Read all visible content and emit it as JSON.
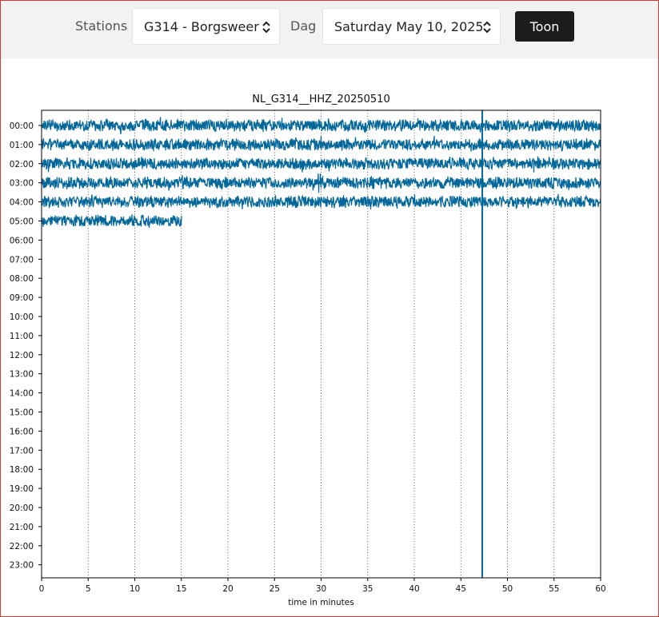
{
  "form": {
    "stations_label": "Stations",
    "station_value": "G314 - Borgsweer",
    "day_label": "Dag",
    "day_value": "Saturday May 10, 2025",
    "submit_label": "Toon"
  },
  "chart_data": {
    "type": "line",
    "title": "NL_G314__HHZ_20250510",
    "xlabel": "time in minutes",
    "ylabel": "",
    "xlim": [
      0,
      60
    ],
    "x_ticks": [
      0,
      5,
      10,
      15,
      20,
      25,
      30,
      35,
      40,
      45,
      50,
      55,
      60
    ],
    "y_tick_labels": [
      "00:00",
      "01:00",
      "02:00",
      "03:00",
      "04:00",
      "05:00",
      "06:00",
      "07:00",
      "08:00",
      "09:00",
      "10:00",
      "11:00",
      "12:00",
      "13:00",
      "14:00",
      "15:00",
      "16:00",
      "17:00",
      "18:00",
      "19:00",
      "20:00",
      "21:00",
      "22:00",
      "23:00"
    ],
    "grid": "vertical dotted",
    "line_color": "#04679a",
    "series": [
      {
        "hour": "00:00",
        "start_min": 0,
        "end_min": 60
      },
      {
        "hour": "01:00",
        "start_min": 0,
        "end_min": 60
      },
      {
        "hour": "02:00",
        "start_min": 0,
        "end_min": 60
      },
      {
        "hour": "03:00",
        "start_min": 0,
        "end_min": 60,
        "event_at_min": 30
      },
      {
        "hour": "04:00",
        "start_min": 0,
        "end_min": 60
      },
      {
        "hour": "05:00",
        "start_min": 0,
        "end_min": 15.1
      }
    ],
    "spike": {
      "at_min": 47.3,
      "hour_from": "00:00",
      "hour_to": "23:00"
    }
  }
}
